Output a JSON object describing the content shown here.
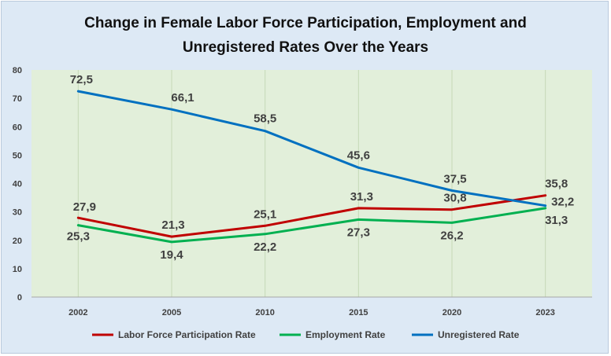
{
  "chart_data": {
    "type": "line",
    "title_line1": "Change in Female Labor Force Participation, Employment and",
    "title_line2": "Unregistered Rates Over the Years",
    "categories": [
      "2002",
      "2005",
      "2010",
      "2015",
      "2020",
      "2023"
    ],
    "ylim": [
      0,
      80
    ],
    "yticks": [
      "0",
      "10",
      "20",
      "30",
      "40",
      "50",
      "60",
      "70",
      "80"
    ],
    "grid": "vertical",
    "legend_position": "bottom",
    "series": [
      {
        "name": "Labor Force Participation Rate",
        "color": "#c00000",
        "values": [
          27.9,
          21.3,
          25.1,
          31.3,
          30.8,
          35.8
        ],
        "labels": [
          "27,9",
          "21,3",
          "25,1",
          "31,3",
          "30,8",
          "35,8"
        ]
      },
      {
        "name": "Employment Rate",
        "color": "#00b050",
        "values": [
          25.3,
          19.4,
          22.2,
          27.3,
          26.2,
          31.3
        ],
        "labels": [
          "25,3",
          "19,4",
          "22,2",
          "27,3",
          "26,2",
          "31,3"
        ]
      },
      {
        "name": "Unregistered Rate",
        "color": "#0070c0",
        "values": [
          72.5,
          66.1,
          58.5,
          45.6,
          37.5,
          32.2
        ],
        "labels": [
          "72,5",
          "66,1",
          "58,5",
          "45,6",
          "37,5",
          "32,2"
        ]
      }
    ],
    "plot_background": "#e2efda"
  }
}
